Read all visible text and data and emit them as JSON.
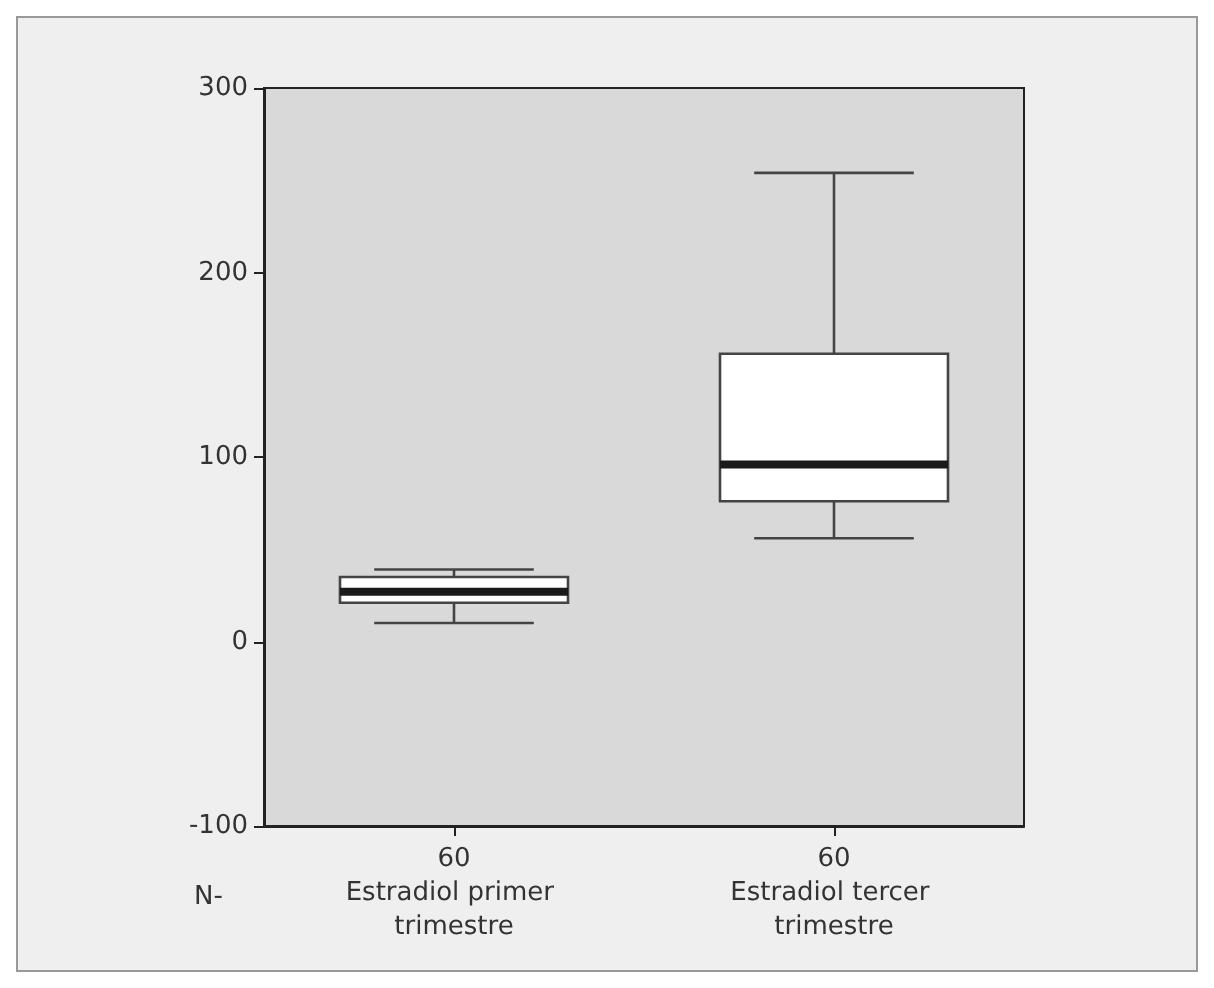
{
  "chart_data": {
    "type": "box",
    "categories": [
      "Estradiol primer trimestre",
      "Estradiol tercer trimestre"
    ],
    "boxes": [
      {
        "low": 10,
        "q1": 21,
        "median": 27,
        "q3": 35,
        "high": 39
      },
      {
        "low": 56,
        "q1": 76,
        "median": 96,
        "q3": 156,
        "high": 254
      }
    ],
    "color": "#ffffff",
    "ylim": [
      -100,
      300
    ],
    "yticks": [
      -100,
      0,
      100,
      200,
      300
    ],
    "annotations": [
      "N-",
      "60",
      "60"
    ]
  }
}
